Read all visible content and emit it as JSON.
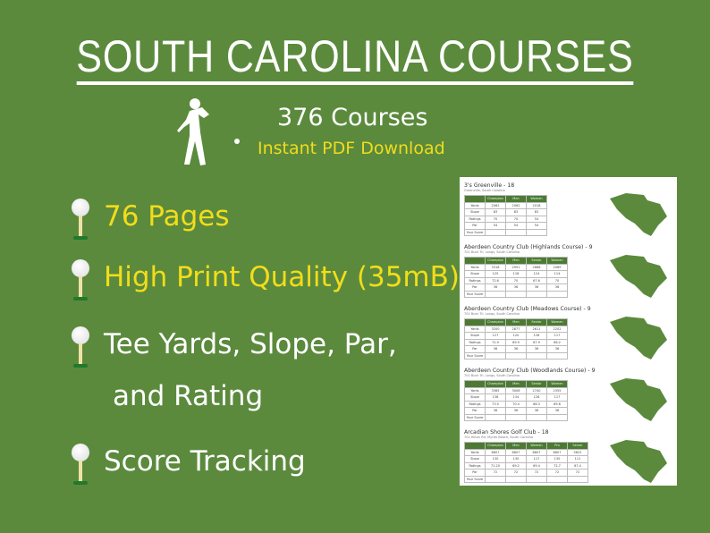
{
  "title": "SOUTH CAROLINA COURSES",
  "course_count": "376 Courses",
  "download": "Instant PDF Download",
  "features": [
    {
      "text": "76 Pages",
      "color": "#f2dd1a"
    },
    {
      "text": "High Print Quality (35mB)",
      "color": "#f2dd1a"
    },
    {
      "text": "Tee Yards, Slope, Par,",
      "text2": "and Rating",
      "color": "#ffffff"
    },
    {
      "text": "Score Tracking",
      "color": "#ffffff"
    }
  ],
  "colors": {
    "background": "#5b8a3d",
    "accent": "#f2dd1a",
    "table_header": "#4d7a32"
  },
  "document": {
    "courses": [
      {
        "name": "3's Greenville - 18",
        "address": "Greenville, South Carolina",
        "headers": [
          "",
          "Champion",
          "Men",
          "Women"
        ],
        "rows": [
          [
            "Yards",
            "2062",
            "2062",
            "2018"
          ],
          [
            "Slope",
            "83",
            "83",
            "83"
          ],
          [
            "Ratings",
            "70",
            "70",
            "54"
          ],
          [
            "Par",
            "54",
            "54",
            "54"
          ],
          [
            "Your Score",
            "",
            "",
            ""
          ]
        ]
      },
      {
        "name": "Aberdeen Country Club (Highlands Course) - 9",
        "address": "701 Buck Trl, Longs, South Carolina",
        "headers": [
          "",
          "Champion",
          "Men",
          "Senior",
          "Women"
        ],
        "rows": [
          [
            "Yards",
            "3318",
            "2951",
            "2668",
            "2089"
          ],
          [
            "Slope",
            "125",
            "118",
            "124",
            "114"
          ],
          [
            "Ratings",
            "72.6",
            "70",
            "67.6",
            "70"
          ],
          [
            "Par",
            "36",
            "36",
            "36",
            "36"
          ],
          [
            "Your Score",
            "",
            "",
            "",
            ""
          ]
        ]
      },
      {
        "name": "Aberdeen Country Club (Meadows Course) - 9",
        "address": "701 Buck Trl, Longs, South Carolina",
        "headers": [
          "",
          "Champion",
          "Men",
          "Senior",
          "Women"
        ],
        "rows": [
          [
            "Yards",
            "3200",
            "2877",
            "2611",
            "2202"
          ],
          [
            "Slope",
            "127",
            "120",
            "126",
            "117"
          ],
          [
            "Ratings",
            "72.9",
            "69.9",
            "67.9",
            "66.2"
          ],
          [
            "Par",
            "36",
            "36",
            "36",
            "36"
          ],
          [
            "Your Score",
            "",
            "",
            "",
            ""
          ]
        ]
      },
      {
        "name": "Aberdeen Country Club (Woodlands Course) - 9",
        "address": "701 Buck Trl, Longs, South Carolina",
        "headers": [
          "",
          "Champion",
          "Men",
          "Senior",
          "Women"
        ],
        "rows": [
          [
            "Yards",
            "3365",
            "3006",
            "2740",
            "2355"
          ],
          [
            "Slope",
            "138",
            "134",
            "126",
            "117"
          ],
          [
            "Ratings",
            "73.5",
            "70.4",
            "68.3",
            "69.8"
          ],
          [
            "Par",
            "36",
            "36",
            "36",
            "36"
          ],
          [
            "Your Score",
            "",
            "",
            "",
            ""
          ]
        ]
      },
      {
        "name": "Arcadian Shores Golf Club - 18",
        "address": "701 Hilton Rd, Myrtle Beach, South Carolina",
        "headers": [
          "",
          "Champion",
          "Men",
          "Women",
          "Pro",
          "Senior"
        ],
        "rows": [
          [
            "Yards",
            "6607",
            "6607",
            "6607",
            "6607",
            "5622"
          ],
          [
            "Slope",
            "130",
            "130",
            "117",
            "130",
            "111"
          ],
          [
            "Ratings",
            "71.20",
            "69.2",
            "69.4",
            "72.7",
            "67.4"
          ],
          [
            "Par",
            "72",
            "72",
            "72",
            "72",
            "72"
          ],
          [
            "Your Score",
            "",
            "",
            "",
            "",
            ""
          ]
        ]
      }
    ]
  }
}
